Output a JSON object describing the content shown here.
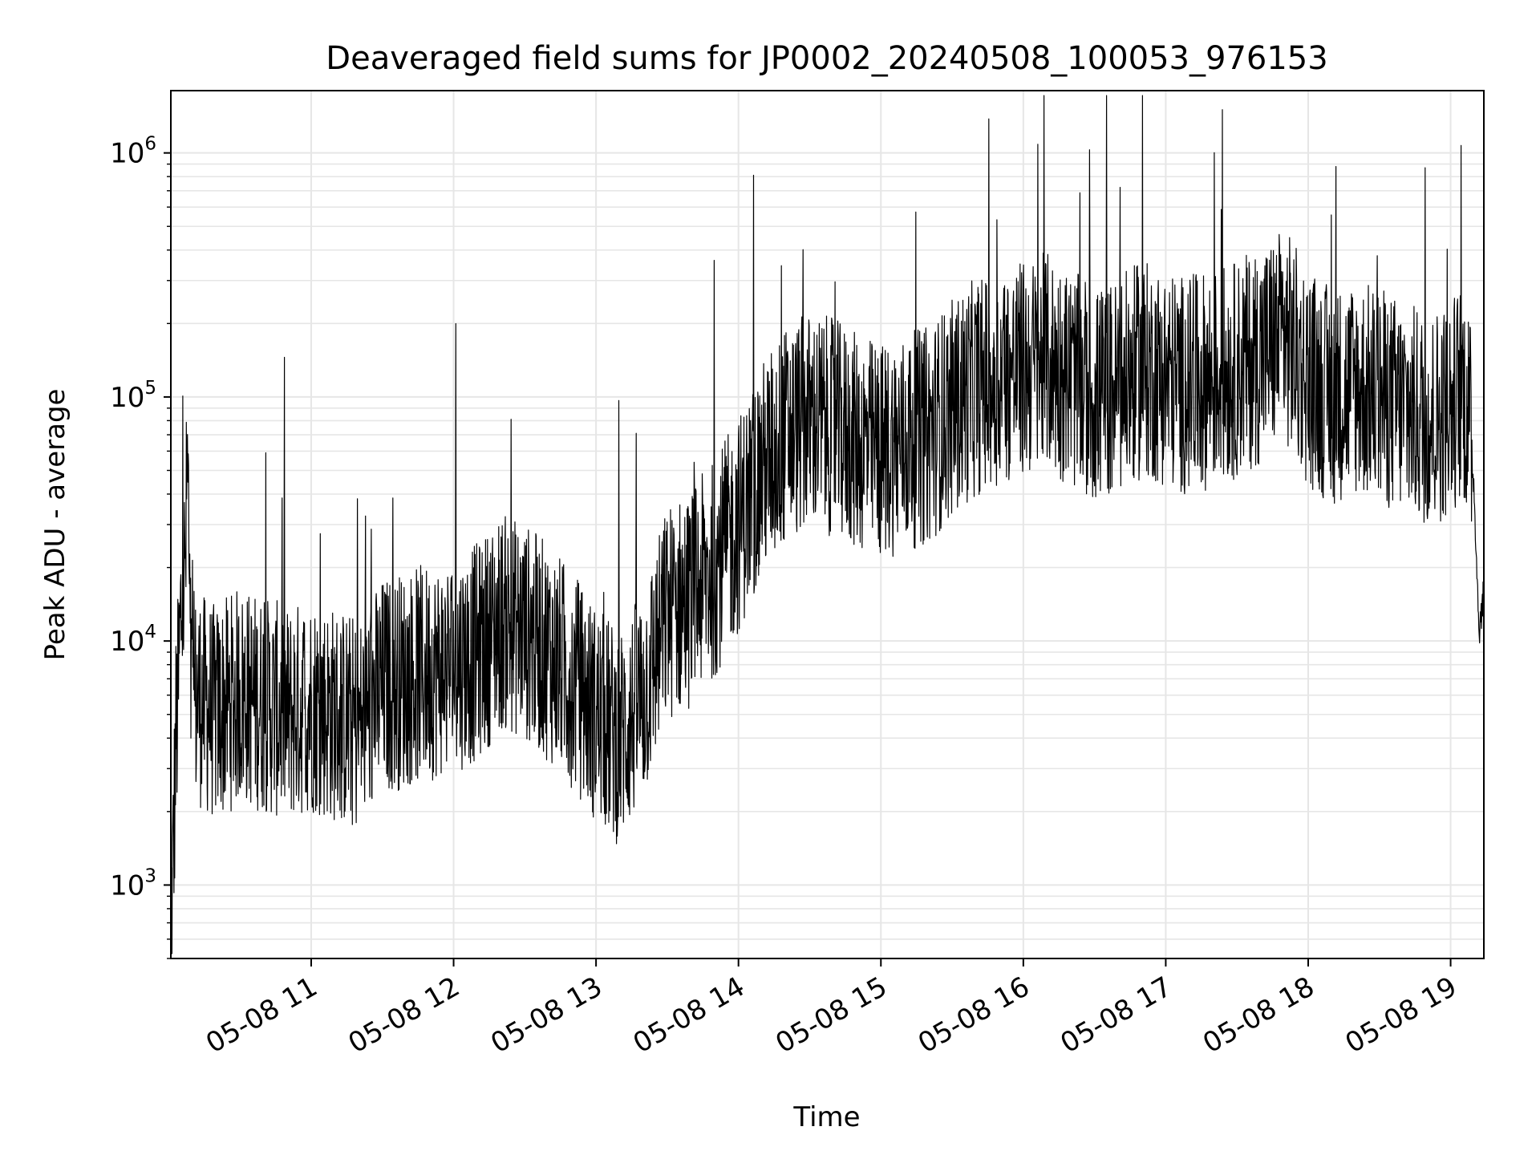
{
  "chart_data": {
    "type": "line",
    "title": "Deaveraged field sums for JP0002_20240508_100053_976153",
    "xlabel": "Time",
    "ylabel": "Peak ADU - average",
    "yscale": "log",
    "ylim": [
      500,
      1800000
    ],
    "xlim": [
      "2024-05-08 10:00:53",
      "2024-05-08 19:14:00"
    ],
    "grid": true,
    "line_color": "#000000",
    "grid_color": "#e6e6e6",
    "x_ticks": [
      {
        "time": "2024-05-08 11:00",
        "label": "05-08 11"
      },
      {
        "time": "2024-05-08 12:00",
        "label": "05-08 12"
      },
      {
        "time": "2024-05-08 13:00",
        "label": "05-08 13"
      },
      {
        "time": "2024-05-08 14:00",
        "label": "05-08 14"
      },
      {
        "time": "2024-05-08 15:00",
        "label": "05-08 15"
      },
      {
        "time": "2024-05-08 16:00",
        "label": "05-08 16"
      },
      {
        "time": "2024-05-08 17:00",
        "label": "05-08 17"
      },
      {
        "time": "2024-05-08 18:00",
        "label": "05-08 18"
      },
      {
        "time": "2024-05-08 19:00",
        "label": "05-08 19"
      }
    ],
    "y_ticks": [
      {
        "value": 1000,
        "base": "10",
        "exp": "3"
      },
      {
        "value": 10000,
        "base": "10",
        "exp": "4"
      },
      {
        "value": 100000,
        "base": "10",
        "exp": "5"
      },
      {
        "value": 1000000,
        "base": "10",
        "exp": "6"
      }
    ],
    "series": [
      {
        "x": [
          "2024-05-08 10:00:53",
          "2024-05-08 10:01",
          "2024-05-08 10:02",
          "2024-05-08 10:03",
          "2024-05-08 10:04",
          "2024-05-08 10:05",
          "2024-05-08 10:07",
          "2024-05-08 10:08",
          "2024-05-08 10:09",
          "2024-05-08 10:10",
          "2024-05-08 10:12",
          "2024-05-08 10:15",
          "2024-05-08 10:20",
          "2024-05-08 10:25",
          "2024-05-08 10:30",
          "2024-05-08 10:40",
          "2024-05-08 10:50",
          "2024-05-08 11:00",
          "2024-05-08 11:10",
          "2024-05-08 11:20",
          "2024-05-08 11:30",
          "2024-05-08 11:40",
          "2024-05-08 11:50",
          "2024-05-08 12:00",
          "2024-05-08 12:10",
          "2024-05-08 12:20",
          "2024-05-08 12:30",
          "2024-05-08 12:40",
          "2024-05-08 12:50",
          "2024-05-08 13:00",
          "2024-05-08 13:10",
          "2024-05-08 13:20",
          "2024-05-08 13:30",
          "2024-05-08 13:40",
          "2024-05-08 13:50",
          "2024-05-08 14:00",
          "2024-05-08 14:10",
          "2024-05-08 14:20",
          "2024-05-08 14:30",
          "2024-05-08 14:40",
          "2024-05-08 14:50",
          "2024-05-08 15:00",
          "2024-05-08 15:10",
          "2024-05-08 15:20",
          "2024-05-08 15:30",
          "2024-05-08 15:40",
          "2024-05-08 15:50",
          "2024-05-08 16:00",
          "2024-05-08 16:10",
          "2024-05-08 16:20",
          "2024-05-08 16:30",
          "2024-05-08 16:40",
          "2024-05-08 16:50",
          "2024-05-08 17:00",
          "2024-05-08 17:10",
          "2024-05-08 17:20",
          "2024-05-08 17:30",
          "2024-05-08 17:40",
          "2024-05-08 17:50",
          "2024-05-08 18:00",
          "2024-05-08 18:10",
          "2024-05-08 18:20",
          "2024-05-08 18:30",
          "2024-05-08 18:40",
          "2024-05-08 18:50",
          "2024-05-08 19:00",
          "2024-05-08 19:05",
          "2024-05-08 19:08",
          "2024-05-08 19:10",
          "2024-05-08 19:11",
          "2024-05-08 19:12",
          "2024-05-08 19:13",
          "2024-05-08 19:14"
        ],
        "y": [
          2000,
          700,
          1400,
          4000,
          6000,
          12000,
          20000,
          60000,
          8000,
          5000,
          6000,
          5500,
          5000,
          5500,
          6000,
          5500,
          5000,
          5500,
          5000,
          4500,
          6500,
          7000,
          7500,
          8000,
          9000,
          12000,
          11000,
          9000,
          7000,
          5000,
          4000,
          6000,
          13000,
          15000,
          20000,
          30000,
          50000,
          70000,
          80000,
          75000,
          65000,
          60000,
          65000,
          70000,
          90000,
          110000,
          120000,
          130000,
          140000,
          120000,
          100000,
          110000,
          130000,
          120000,
          110000,
          120000,
          130000,
          150000,
          180000,
          120000,
          100000,
          110000,
          100000,
          90000,
          80000,
          90000,
          110000,
          80000,
          40000,
          20000,
          11000,
          13000,
          16000
        ]
      }
    ]
  }
}
